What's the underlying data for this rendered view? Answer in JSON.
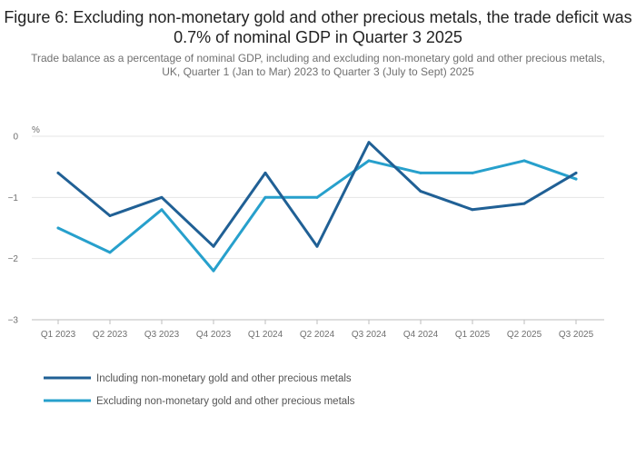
{
  "chart_data": {
    "type": "line",
    "title": "Figure 6: Excluding non-monetary gold and other precious metals, the trade deficit was 0.7% of nominal GDP in Quarter 3 2025",
    "subtitle": "Trade balance as a percentage of nominal GDP, including and excluding non-monetary gold and other precious metals, UK, Quarter 1 (Jan to Mar) 2023 to Quarter 3 (July to Sept) 2025",
    "ylabel": "%",
    "xlabel": "",
    "ylim": [
      -3,
      0
    ],
    "yticks": [
      0,
      -1,
      -2,
      -3
    ],
    "ytick_labels": [
      "0",
      "−1",
      "−2",
      "−3"
    ],
    "categories": [
      "Q1 2023",
      "Q2 2023",
      "Q3 2023",
      "Q4 2023",
      "Q1 2024",
      "Q2 2024",
      "Q3 2024",
      "Q4 2024",
      "Q1 2025",
      "Q2 2025",
      "Q3 2025"
    ],
    "grid": true,
    "legend_position": "bottom-left",
    "series": [
      {
        "name": "Including non-monetary gold and other precious metals",
        "color": "#206095",
        "values": [
          -0.6,
          -1.3,
          -1.0,
          -1.8,
          -0.6,
          -1.8,
          -0.1,
          -0.9,
          -1.2,
          -1.1,
          -0.6
        ]
      },
      {
        "name": "Excluding non-monetary gold and other precious metals",
        "color": "#27a0cc",
        "values": [
          -1.5,
          -1.9,
          -1.2,
          -2.2,
          -1.0,
          -1.0,
          -0.4,
          -0.6,
          -0.6,
          -0.4,
          -0.7
        ]
      }
    ]
  }
}
